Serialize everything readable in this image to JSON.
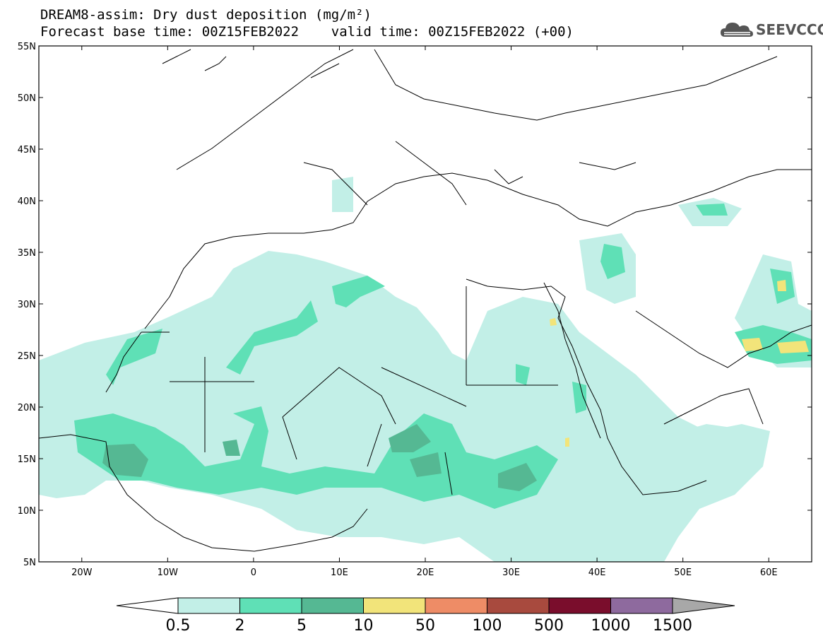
{
  "header": {
    "line1": "DREAM8-assim: Dry dust deposition (mg/m²)",
    "line2": "Forecast base time: 00Z15FEB2022    valid time: 00Z15FEB2022 (+00)"
  },
  "logo": {
    "text": "SEEVCCC",
    "icon": "cloud-icon"
  },
  "map": {
    "lon_range": [
      -25,
      65
    ],
    "lat_range": [
      5,
      55
    ],
    "lon_ticks": [
      "20W",
      "10W",
      "0",
      "10E",
      "20E",
      "30E",
      "40E",
      "50E",
      "60E"
    ],
    "lat_ticks": [
      "55N",
      "50N",
      "45N",
      "40N",
      "35N",
      "30N",
      "25N",
      "20N",
      "15N",
      "10N",
      "5N"
    ]
  },
  "colorbar": {
    "labels": [
      "0.5",
      "2",
      "5",
      "10",
      "50",
      "100",
      "500",
      "1000",
      "1500"
    ],
    "colors": [
      "#c2efe7",
      "#5fe0b6",
      "#55b893",
      "#f2e47a",
      "#ee8c66",
      "#a84a3e",
      "#7a0d2c",
      "#8e6a9e",
      "#a8a8a8"
    ]
  }
}
